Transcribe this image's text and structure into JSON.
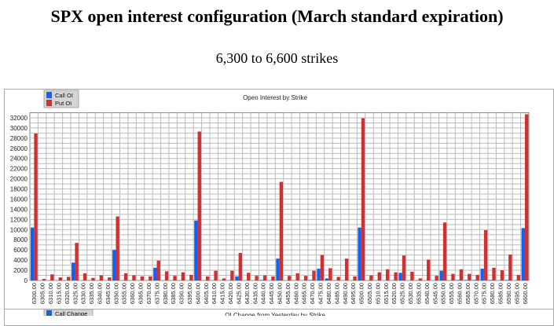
{
  "page": {
    "title": "SPX open interest configuration (March standard expiration)",
    "subtitle": "6,300 to 6,600 strikes"
  },
  "chart_data": [
    {
      "type": "bar",
      "title": "Open Interest by Strike",
      "xlabel": "",
      "ylabel": "",
      "ylim": [
        0,
        33000
      ],
      "yticks": [
        0,
        2000,
        4000,
        6000,
        8000,
        10000,
        12000,
        14000,
        16000,
        18000,
        20000,
        22000,
        24000,
        26000,
        28000,
        30000,
        32000
      ],
      "grid": true,
      "legend_position": "top-left",
      "categories": [
        "6300.00",
        "6305.00",
        "6310.00",
        "6315.00",
        "6320.00",
        "6325.00",
        "6330.00",
        "6335.00",
        "6340.00",
        "6345.00",
        "6350.00",
        "6355.00",
        "6360.00",
        "6365.00",
        "6370.00",
        "6375.00",
        "6380.00",
        "6385.00",
        "6390.00",
        "6395.00",
        "6400.00",
        "6405.00",
        "6410.00",
        "6415.00",
        "6420.00",
        "6425.00",
        "6430.00",
        "6435.00",
        "6440.00",
        "6445.00",
        "6450.00",
        "6455.00",
        "6460.00",
        "6465.00",
        "6470.00",
        "6475.00",
        "6480.00",
        "6485.00",
        "6490.00",
        "6495.00",
        "6500.00",
        "6505.00",
        "6510.00",
        "6515.00",
        "6520.00",
        "6525.00",
        "6530.00",
        "6535.00",
        "6540.00",
        "6545.00",
        "6550.00",
        "6555.00",
        "6560.00",
        "6565.00",
        "6570.00",
        "6575.00",
        "6580.00",
        "6585.00",
        "6590.00",
        "6595.00",
        "6600.00"
      ],
      "series": [
        {
          "name": "Call OI",
          "color": "#1560f0",
          "values": [
            10400,
            0,
            0,
            0,
            0,
            3500,
            0,
            0,
            0,
            0,
            6000,
            0,
            0,
            0,
            0,
            2500,
            0,
            0,
            0,
            0,
            11800,
            0,
            0,
            0,
            0,
            800,
            0,
            0,
            100,
            0,
            4300,
            0,
            0,
            0,
            100,
            2300,
            400,
            0,
            0,
            0,
            10400,
            0,
            0,
            0,
            0,
            1500,
            0,
            0,
            0,
            0,
            1900,
            0,
            100,
            100,
            100,
            2300,
            100,
            0,
            100,
            0,
            10300
          ]
        },
        {
          "name": "Put OI",
          "color": "#d03030",
          "values": [
            28900,
            300,
            1200,
            600,
            700,
            7400,
            1400,
            500,
            1000,
            600,
            12600,
            1400,
            1000,
            800,
            800,
            3900,
            1800,
            900,
            1600,
            1100,
            29300,
            800,
            1900,
            400,
            1900,
            5400,
            1500,
            900,
            1000,
            800,
            19400,
            900,
            1400,
            900,
            1900,
            5000,
            2400,
            700,
            4300,
            800,
            31900,
            1000,
            1600,
            2200,
            1600,
            4900,
            1700,
            400,
            4100,
            900,
            11400,
            1300,
            2200,
            1300,
            1100,
            9900,
            2500,
            2000,
            5100,
            1100,
            32700
          ]
        }
      ]
    },
    {
      "type": "bar",
      "title": "OI Change from Yesterday by Strike",
      "legend_position": "top-left",
      "series": [
        {
          "name": "Call Change",
          "color": "#1560f0"
        }
      ]
    }
  ]
}
